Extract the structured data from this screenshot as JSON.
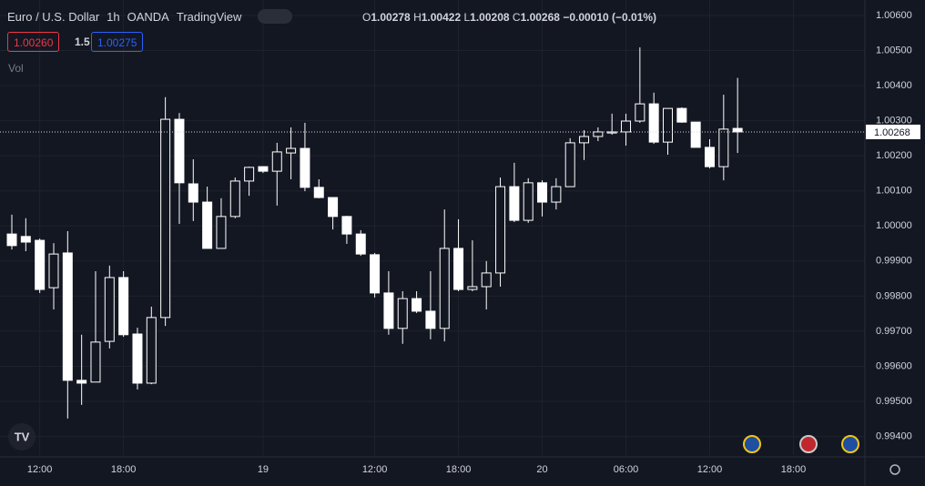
{
  "header": {
    "symbol": "Euro / U.S. Dollar",
    "interval": "1h",
    "broker": "OANDA",
    "source": "TradingView",
    "ohlc": {
      "o_label": "O",
      "o": "1.00278",
      "h_label": "H",
      "h": "1.00422",
      "l_label": "L",
      "l": "1.00208",
      "c_label": "C",
      "c": "1.00268",
      "change": "−0.00010 (−0.01%)"
    }
  },
  "trade": {
    "sell": "1.00260",
    "spread": "1.5",
    "buy": "1.00275"
  },
  "volume_label": "Vol",
  "chart_data": {
    "type": "candlestick",
    "color": "#ffffff",
    "grid": true,
    "categories": [
      null,
      null,
      "12:00",
      null,
      null,
      null,
      null,
      null,
      "18:00",
      null,
      null,
      null,
      null,
      null,
      null,
      null,
      null,
      null,
      "19",
      null,
      null,
      null,
      null,
      null,
      null,
      null,
      "12:00",
      null,
      null,
      null,
      null,
      null,
      "18:00",
      null,
      null,
      null,
      null,
      null,
      "20",
      null,
      null,
      null,
      null,
      null,
      "06:00",
      null,
      null,
      null,
      null,
      null,
      "12:00",
      null,
      null,
      null,
      null,
      null,
      "18:00"
    ],
    "open": [
      0.99977,
      0.9997,
      0.99959,
      0.99824,
      0.99923,
      0.9956,
      0.99555,
      0.99671,
      0.99853,
      0.99692,
      0.99552,
      0.99739,
      1.00304,
      1.0012,
      1.00068,
      0.99936,
      1.00027,
      1.00128,
      1.00169,
      1.00156,
      1.00208,
      1.00221,
      1.0011,
      1.00081,
      1.00027,
      0.99977,
      0.99918,
      0.99809,
      0.99708,
      0.99793,
      0.99757,
      0.99708,
      0.99936,
      0.99819,
      0.99827,
      0.99866,
      1.00112,
      1.00016,
      1.00123,
      1.00068,
      1.00112,
      1.00237,
      1.00255,
      1.00265,
      1.00268,
      1.00299,
      1.00348,
      1.00239,
      1.00335,
      1.00296,
      1.00224,
      1.00169,
      1.00278,
      null,
      null,
      null,
      null
    ],
    "high": [
      1.00032,
      1.00022,
      0.99964,
      0.99951,
      0.99985,
      0.9969,
      0.99871,
      0.99887,
      0.99871,
      0.9971,
      0.9977,
      1.00367,
      1.00322,
      1.0019,
      1.00112,
      1.00079,
      1.00138,
      1.00169,
      1.00169,
      1.00237,
      1.00281,
      1.00294,
      1.00133,
      1.00081,
      1.00029,
      0.99988,
      0.99923,
      0.99871,
      0.99814,
      0.99814,
      0.99871,
      1.00047,
      1.00019,
      0.99959,
      0.999,
      1.00138,
      1.0018,
      1.00136,
      1.0013,
      1.00136,
      1.0025,
      1.00273,
      1.00281,
      1.0032,
      1.0032,
      1.00509,
      1.0038,
      1.00335,
      1.00338,
      1.00296,
      1.00247,
      1.00374,
      1.00422,
      null,
      null,
      null,
      null
    ],
    "low": [
      0.99933,
      0.99928,
      0.99809,
      0.99762,
      0.99451,
      0.9949,
      0.99555,
      0.99651,
      0.99684,
      0.99534,
      0.99549,
      0.99715,
      1.00006,
      1.00014,
      0.99936,
      0.99936,
      1.00022,
      1.00086,
      1.00151,
      1.00058,
      1.00133,
      1.00099,
      1.00079,
      0.9999,
      0.99949,
      0.99915,
      0.99796,
      0.9969,
      0.99664,
      0.99752,
      0.99677,
      0.99671,
      0.99814,
      0.99814,
      0.99762,
      0.99827,
      1.00011,
      1.00009,
      1.00027,
      1.00047,
      1.00112,
      1.00188,
      1.00242,
      1.0026,
      1.00229,
      1.00294,
      1.00234,
      1.00203,
      1.00294,
      1.00224,
      1.00164,
      1.0013,
      1.00208,
      null,
      null,
      null,
      null
    ],
    "close": [
      0.99944,
      0.99954,
      0.99819,
      0.9992,
      0.9956,
      0.99552,
      0.99669,
      0.99853,
      0.9969,
      0.99552,
      0.99739,
      1.00304,
      1.00123,
      1.00068,
      0.99936,
      1.00027,
      1.00128,
      1.00167,
      1.00156,
      1.00211,
      1.00221,
      1.0011,
      1.00081,
      1.00027,
      0.99977,
      0.9992,
      0.99809,
      0.99708,
      0.99793,
      0.99757,
      0.99708,
      0.99936,
      0.99819,
      0.99827,
      0.99866,
      1.00112,
      1.00016,
      1.00123,
      1.00068,
      1.00112,
      1.00237,
      1.00255,
      1.00268,
      1.00268,
      1.00299,
      1.00348,
      1.00239,
      1.00335,
      1.00296,
      1.00224,
      1.00169,
      1.00276,
      1.00268,
      null,
      null,
      null,
      null
    ],
    "last_price_label": "1.00268",
    "ylim": [
      0.99347,
      1.00644
    ],
    "yticks": [
      {
        "value": 0.994,
        "label": "0.99400"
      },
      {
        "value": 0.995,
        "label": "0.99500"
      },
      {
        "value": 0.996,
        "label": "0.99600"
      },
      {
        "value": 0.997,
        "label": "0.99700"
      },
      {
        "value": 0.998,
        "label": "0.99800"
      },
      {
        "value": 0.999,
        "label": "0.99900"
      },
      {
        "value": 1.0,
        "label": "1.00000"
      },
      {
        "value": 1.001,
        "label": "1.00100"
      },
      {
        "value": 1.002,
        "label": "1.00200"
      },
      {
        "value": 1.003,
        "label": "1.00300"
      },
      {
        "value": 1.004,
        "label": "1.00400"
      },
      {
        "value": 1.005,
        "label": "1.00500"
      },
      {
        "value": 1.006,
        "label": "1.00600"
      }
    ]
  }
}
